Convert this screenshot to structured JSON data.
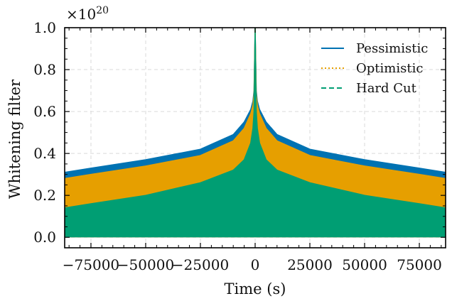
{
  "chart_data": {
    "type": "area",
    "title": "",
    "xlabel": "Time (s)",
    "ylabel": "Whitening filter",
    "y_multiplier": {
      "base": "×10",
      "exponent": "20"
    },
    "xlim": [
      -87000,
      87000
    ],
    "ylim": [
      -0.05,
      1.0
    ],
    "x_ticks": [
      -75000,
      -50000,
      -25000,
      0,
      25000,
      50000,
      75000
    ],
    "x_tick_labels": [
      "−75000",
      "−50000",
      "−25000",
      "0",
      "25000",
      "50000",
      "75000"
    ],
    "y_ticks": [
      0.0,
      0.2,
      0.4,
      0.6,
      0.8,
      1.0
    ],
    "y_tick_labels": [
      "0.0",
      "0.2",
      "0.4",
      "0.6",
      "0.8",
      "1.0"
    ],
    "grid": true,
    "legend_position": "top-right",
    "x": [
      -87000,
      -75000,
      -50000,
      -25000,
      -10000,
      -5000,
      -2000,
      -1000,
      -500,
      0,
      500,
      1000,
      2000,
      5000,
      10000,
      25000,
      50000,
      75000,
      87000
    ],
    "series": [
      {
        "name": "Pessimistic",
        "color": "#0072B2",
        "line_style": "solid",
        "upper": [
          0.31,
          0.33,
          0.37,
          0.42,
          0.49,
          0.55,
          0.61,
          0.65,
          0.7,
          1.0,
          0.7,
          0.65,
          0.61,
          0.55,
          0.49,
          0.42,
          0.37,
          0.33,
          0.31
        ],
        "lower": [
          0.0,
          0.0,
          0.0,
          0.0,
          0.0,
          0.0,
          0.0,
          0.0,
          0.0,
          0.0,
          0.0,
          0.0,
          0.0,
          0.0,
          0.0,
          0.0,
          0.0,
          0.0,
          0.0
        ]
      },
      {
        "name": "Optimistic",
        "color": "#E69F00",
        "line_style": "dotted",
        "upper": [
          0.28,
          0.3,
          0.34,
          0.39,
          0.46,
          0.52,
          0.59,
          0.63,
          0.68,
          1.0,
          0.68,
          0.63,
          0.59,
          0.52,
          0.46,
          0.39,
          0.34,
          0.3,
          0.28
        ],
        "lower": [
          0.0,
          0.0,
          0.0,
          0.0,
          0.0,
          0.0,
          0.0,
          0.0,
          0.0,
          0.0,
          0.0,
          0.0,
          0.0,
          0.0,
          0.0,
          0.0,
          0.0,
          0.0,
          0.0
        ]
      },
      {
        "name": "Hard Cut",
        "color": "#009E73",
        "line_style": "dashed",
        "upper": [
          0.14,
          0.16,
          0.2,
          0.26,
          0.32,
          0.37,
          0.45,
          0.52,
          0.6,
          1.0,
          0.6,
          0.52,
          0.45,
          0.37,
          0.32,
          0.26,
          0.2,
          0.16,
          0.14
        ],
        "lower": [
          0.0,
          0.0,
          0.0,
          0.0,
          0.0,
          0.0,
          0.0,
          0.0,
          0.0,
          0.0,
          0.0,
          0.0,
          0.0,
          0.0,
          0.0,
          0.0,
          0.0,
          0.0,
          0.0
        ]
      }
    ]
  }
}
